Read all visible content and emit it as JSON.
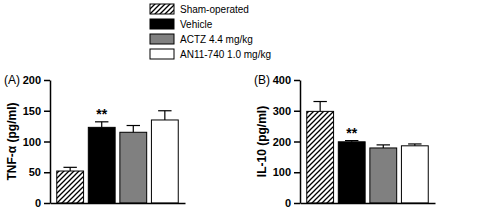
{
  "chart_data": [
    {
      "type": "bar",
      "title": "(A)",
      "y_label": "TNF-α (pg/ml)",
      "ylim": [
        0,
        200
      ],
      "yticks": [
        0,
        50,
        100,
        150,
        200
      ],
      "categories": [
        null
      ],
      "legend": "top",
      "series": [
        {
          "name": "Sham-operated",
          "color": "#ffffff",
          "values": [
            52
          ],
          "errors": [
            6
          ]
        },
        {
          "name": "Vehicle",
          "color": "#000000",
          "values": [
            123
          ],
          "errors": [
            9
          ],
          "annotation": "**"
        },
        {
          "name": "ACTZ 4.4 mg/kg",
          "color": "#808080",
          "values": [
            115
          ],
          "errors": [
            11
          ]
        },
        {
          "name": "AN11-740 1.0 mg/kg",
          "color": "#ffffff",
          "values": [
            135
          ],
          "errors": [
            15
          ]
        }
      ]
    },
    {
      "type": "bar",
      "title": "(B)",
      "y_label": "IL-10 (pg/ml)",
      "ylim": [
        0,
        400
      ],
      "yticks": [
        0,
        100,
        200,
        300,
        400
      ],
      "categories": [
        null
      ],
      "series": [
        {
          "color": "#ffffff",
          "values": [
            298
          ],
          "errors": [
            32
          ]
        },
        {
          "color": "#000000",
          "values": [
            199
          ],
          "errors": [
            4
          ],
          "annotation": "**"
        },
        {
          "color": "#808080",
          "values": [
            179
          ],
          "errors": [
            10
          ]
        },
        {
          "color": "#ffffff",
          "values": [
            186
          ],
          "errors": [
            6
          ]
        }
      ]
    }
  ]
}
